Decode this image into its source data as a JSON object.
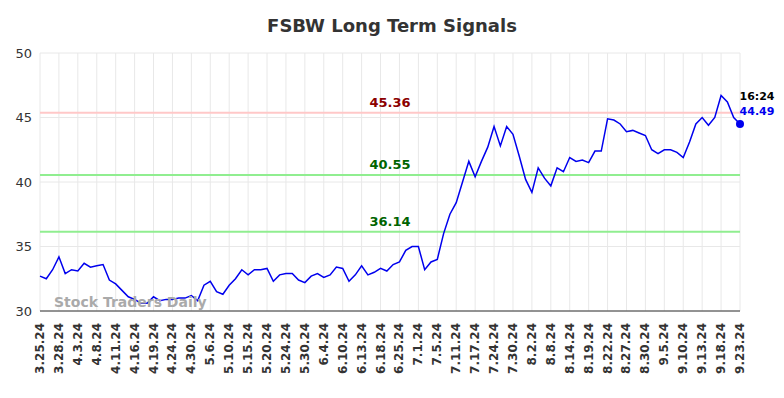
{
  "chart_data": {
    "type": "line",
    "title": "FSBW Long Term Signals",
    "watermark": "Stock Traders Daily",
    "last_point_time": "16:24",
    "last_point_label": "44.49",
    "categories": [
      "3.25.24",
      null,
      null,
      "3.28.24",
      null,
      null,
      "4.3.24",
      null,
      null,
      "4.8.24",
      null,
      null,
      "4.11.24",
      null,
      null,
      "4.16.24",
      null,
      null,
      "4.19.24",
      null,
      null,
      "4.24.24",
      null,
      null,
      "4.30.24",
      null,
      null,
      "5.6.24",
      null,
      null,
      "5.10.24",
      null,
      null,
      "5.15.24",
      null,
      null,
      "5.20.24",
      null,
      null,
      "5.24.24",
      null,
      null,
      "5.30.24",
      null,
      null,
      "6.4.24",
      null,
      null,
      "6.10.24",
      null,
      null,
      "6.13.24",
      null,
      null,
      "6.18.24",
      null,
      null,
      "6.25.24",
      null,
      null,
      "7.1.24",
      null,
      null,
      "7.5.24",
      null,
      null,
      "7.11.24",
      null,
      null,
      "7.17.24",
      null,
      null,
      "7.24.24",
      null,
      null,
      "7.30.24",
      null,
      null,
      "8.2.24",
      null,
      null,
      "8.8.24",
      null,
      null,
      "8.14.24",
      null,
      null,
      "8.19.24",
      null,
      null,
      "8.22.24",
      null,
      null,
      "8.27.24",
      null,
      null,
      "8.30.24",
      null,
      null,
      "9.5.24",
      null,
      null,
      "9.10.24",
      null,
      null,
      "9.13.24",
      null,
      null,
      "9.18.24",
      null,
      null,
      "9.23.24"
    ],
    "values": [
      32.7,
      32.5,
      33.2,
      34.2,
      32.9,
      33.2,
      33.1,
      33.7,
      33.4,
      33.5,
      33.6,
      32.4,
      32.1,
      31.6,
      31.1,
      30.9,
      30.6,
      30.6,
      31.1,
      30.8,
      30.9,
      30.9,
      31.0,
      31.0,
      31.2,
      30.8,
      32.0,
      32.3,
      31.5,
      31.3,
      32.0,
      32.5,
      33.2,
      32.8,
      33.2,
      33.2,
      33.3,
      32.3,
      32.8,
      32.9,
      32.9,
      32.4,
      32.2,
      32.7,
      32.9,
      32.6,
      32.8,
      33.4,
      33.3,
      32.3,
      32.8,
      33.5,
      32.8,
      33.0,
      33.3,
      33.1,
      33.6,
      33.8,
      34.7,
      35.0,
      35.0,
      33.2,
      33.8,
      34.0,
      36.0,
      37.5,
      38.4,
      40.0,
      41.6,
      40.4,
      41.6,
      42.7,
      44.3,
      42.8,
      44.3,
      43.7,
      42.0,
      40.2,
      39.2,
      41.1,
      40.3,
      39.7,
      41.1,
      40.8,
      41.9,
      41.6,
      41.7,
      41.5,
      42.4,
      42.4,
      44.9,
      44.8,
      44.5,
      43.9,
      44.0,
      43.8,
      43.6,
      42.5,
      42.2,
      42.5,
      42.5,
      42.3,
      41.9,
      43.1,
      44.5,
      45.0,
      44.4,
      45.0,
      46.7,
      46.2,
      45.0,
      44.49
    ],
    "color": "#0000ee",
    "ylim": [
      30,
      50
    ],
    "yticks": [
      30,
      35,
      40,
      45,
      50
    ],
    "grid": true,
    "reference_lines": [
      {
        "value": 45.36,
        "color": "#ffc8c8",
        "label_color": "#8b0000"
      },
      {
        "value": 40.55,
        "color": "#90ee90",
        "label_color": "#006400"
      },
      {
        "value": 36.14,
        "color": "#90ee90",
        "label_color": "#006400"
      }
    ]
  }
}
